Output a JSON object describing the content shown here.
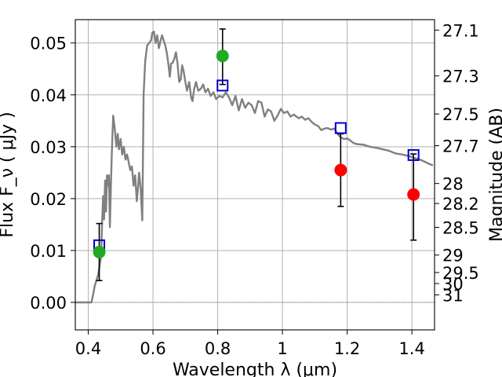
{
  "chart_data": {
    "type": "line",
    "xlabel": "Wavelength  λ (μm)",
    "ylabel": "Flux  F_ν  ( μJy )",
    "ylabel_right": "Magnitude (AB)",
    "xlim": [
      0.36,
      1.47
    ],
    "ylim": [
      -0.0053,
      0.0545
    ],
    "grid": true,
    "x_ticks": [
      {
        "value": 0.4,
        "label": "0.4"
      },
      {
        "value": 0.6,
        "label": "0.6"
      },
      {
        "value": 0.8,
        "label": "0.8"
      },
      {
        "value": 1.0,
        "label": "1"
      },
      {
        "value": 1.2,
        "label": "1.2"
      },
      {
        "value": 1.4,
        "label": "1.4"
      }
    ],
    "y_ticks": [
      {
        "value": 0.0,
        "label": "0.00"
      },
      {
        "value": 0.01,
        "label": "0.01"
      },
      {
        "value": 0.02,
        "label": "0.02"
      },
      {
        "value": 0.03,
        "label": "0.03"
      },
      {
        "value": 0.04,
        "label": "0.04"
      },
      {
        "value": 0.05,
        "label": "0.05"
      }
    ],
    "right_ticks": [
      {
        "value": 27.1,
        "label": "27.1"
      },
      {
        "value": 27.3,
        "label": "27.3"
      },
      {
        "value": 27.5,
        "label": "27.5"
      },
      {
        "value": 27.7,
        "label": "27.7"
      },
      {
        "value": 28.0,
        "label": "28"
      },
      {
        "value": 28.2,
        "label": "28.2"
      },
      {
        "value": 28.5,
        "label": "28.5"
      },
      {
        "value": 29.0,
        "label": "29"
      },
      {
        "value": 29.5,
        "label": "29.5"
      },
      {
        "value": 30.0,
        "label": "30"
      },
      {
        "value": 31.0,
        "label": "31"
      }
    ],
    "series": [
      {
        "kind": "spectrum",
        "color": "#808080",
        "points": [
          [
            0.36,
            0.0
          ],
          [
            0.41,
            0.0
          ],
          [
            0.415,
            0.0015
          ],
          [
            0.42,
            0.0032
          ],
          [
            0.43,
            0.0052
          ],
          [
            0.44,
            0.009
          ],
          [
            0.443,
            0.0155
          ],
          [
            0.446,
            0.0205
          ],
          [
            0.449,
            0.016
          ],
          [
            0.452,
            0.0235
          ],
          [
            0.455,
            0.0175
          ],
          [
            0.458,
            0.0245
          ],
          [
            0.461,
            0.0225
          ],
          [
            0.464,
            0.0245
          ],
          [
            0.467,
            0.0145
          ],
          [
            0.47,
            0.0225
          ],
          [
            0.473,
            0.029
          ],
          [
            0.477,
            0.036
          ],
          [
            0.482,
            0.0335
          ],
          [
            0.487,
            0.03
          ],
          [
            0.491,
            0.0325
          ],
          [
            0.495,
            0.0295
          ],
          [
            0.5,
            0.0315
          ],
          [
            0.505,
            0.0285
          ],
          [
            0.51,
            0.03
          ],
          [
            0.515,
            0.0275
          ],
          [
            0.52,
            0.0285
          ],
          [
            0.525,
            0.027
          ],
          [
            0.53,
            0.0255
          ],
          [
            0.535,
            0.0262
          ],
          [
            0.54,
            0.0225
          ],
          [
            0.545,
            0.0245
          ],
          [
            0.55,
            0.0195
          ],
          [
            0.553,
            0.0215
          ],
          [
            0.557,
            0.025
          ],
          [
            0.562,
            0.022
          ],
          [
            0.567,
            0.0158
          ],
          [
            0.571,
            0.0402
          ],
          [
            0.576,
            0.0465
          ],
          [
            0.582,
            0.0495
          ],
          [
            0.588,
            0.05
          ],
          [
            0.594,
            0.0505
          ],
          [
            0.598,
            0.052
          ],
          [
            0.603,
            0.0522
          ],
          [
            0.608,
            0.05
          ],
          [
            0.613,
            0.0515
          ],
          [
            0.618,
            0.049
          ],
          [
            0.623,
            0.0503
          ],
          [
            0.628,
            0.0515
          ],
          [
            0.633,
            0.0505
          ],
          [
            0.638,
            0.0495
          ],
          [
            0.643,
            0.048
          ],
          [
            0.648,
            0.0458
          ],
          [
            0.652,
            0.0435
          ],
          [
            0.656,
            0.046
          ],
          [
            0.661,
            0.0462
          ],
          [
            0.666,
            0.047
          ],
          [
            0.671,
            0.0482
          ],
          [
            0.676,
            0.046
          ],
          [
            0.681,
            0.0425
          ],
          [
            0.686,
            0.043
          ],
          [
            0.69,
            0.0457
          ],
          [
            0.695,
            0.0445
          ],
          [
            0.7,
            0.0425
          ],
          [
            0.705,
            0.0408
          ],
          [
            0.712,
            0.0425
          ],
          [
            0.718,
            0.0395
          ],
          [
            0.722,
            0.0388
          ],
          [
            0.727,
            0.041
          ],
          [
            0.733,
            0.0425
          ],
          [
            0.74,
            0.0408
          ],
          [
            0.748,
            0.0412
          ],
          [
            0.755,
            0.042
          ],
          [
            0.762,
            0.0405
          ],
          [
            0.77,
            0.0412
          ],
          [
            0.778,
            0.0398
          ],
          [
            0.787,
            0.0405
          ],
          [
            0.795,
            0.0392
          ],
          [
            0.805,
            0.0398
          ],
          [
            0.815,
            0.0395
          ],
          [
            0.825,
            0.0405
          ],
          [
            0.835,
            0.0395
          ],
          [
            0.845,
            0.038
          ],
          [
            0.855,
            0.0398
          ],
          [
            0.865,
            0.037
          ],
          [
            0.875,
            0.0392
          ],
          [
            0.885,
            0.0375
          ],
          [
            0.895,
            0.0385
          ],
          [
            0.905,
            0.038
          ],
          [
            0.915,
            0.0365
          ],
          [
            0.925,
            0.0388
          ],
          [
            0.935,
            0.0385
          ],
          [
            0.945,
            0.0358
          ],
          [
            0.955,
            0.0372
          ],
          [
            0.965,
            0.0368
          ],
          [
            0.975,
            0.035
          ],
          [
            0.985,
            0.036
          ],
          [
            0.995,
            0.0373
          ],
          [
            1.005,
            0.0365
          ],
          [
            1.015,
            0.0368
          ],
          [
            1.025,
            0.0358
          ],
          [
            1.035,
            0.0362
          ],
          [
            1.05,
            0.0355
          ],
          [
            1.06,
            0.0358
          ],
          [
            1.07,
            0.0352
          ],
          [
            1.08,
            0.0355
          ],
          [
            1.09,
            0.0348
          ],
          [
            1.1,
            0.0343
          ],
          [
            1.11,
            0.034
          ],
          [
            1.12,
            0.0332
          ],
          [
            1.13,
            0.0335
          ],
          [
            1.14,
            0.0336
          ],
          [
            1.15,
            0.0333
          ],
          [
            1.16,
            0.0335
          ],
          [
            1.17,
            0.0325
          ],
          [
            1.18,
            0.0318
          ],
          [
            1.19,
            0.0315
          ],
          [
            1.2,
            0.0316
          ],
          [
            1.21,
            0.0312
          ],
          [
            1.22,
            0.0307
          ],
          [
            1.23,
            0.0305
          ],
          [
            1.25,
            0.0304
          ],
          [
            1.27,
            0.03
          ],
          [
            1.29,
            0.0298
          ],
          [
            1.31,
            0.0295
          ],
          [
            1.33,
            0.0292
          ],
          [
            1.35,
            0.0287
          ],
          [
            1.37,
            0.0285
          ],
          [
            1.39,
            0.0282
          ],
          [
            1.41,
            0.0278
          ],
          [
            1.43,
            0.0274
          ],
          [
            1.45,
            0.0268
          ],
          [
            1.465,
            0.0264
          ]
        ]
      },
      {
        "kind": "squares",
        "color": "#0000cc",
        "points": [
          [
            0.434,
            0.011
          ],
          [
            0.815,
            0.0418
          ],
          [
            1.18,
            0.0336
          ],
          [
            1.405,
            0.0284
          ]
        ]
      },
      {
        "kind": "circles",
        "color": "#22aa22",
        "points": [
          {
            "x": 0.434,
            "y": 0.0097,
            "err_low": 0.0055,
            "err_high": 0.0055
          },
          {
            "x": 0.815,
            "y": 0.0475,
            "err_low": 0.0055,
            "err_high": 0.0052
          }
        ]
      },
      {
        "kind": "circles",
        "color": "#ff0000",
        "points": [
          {
            "x": 1.18,
            "y": 0.0255,
            "err_low": 0.007,
            "err_high": 0.007
          },
          {
            "x": 1.405,
            "y": 0.0208,
            "err_low": 0.0088,
            "err_high": 0.0078
          }
        ]
      }
    ]
  }
}
